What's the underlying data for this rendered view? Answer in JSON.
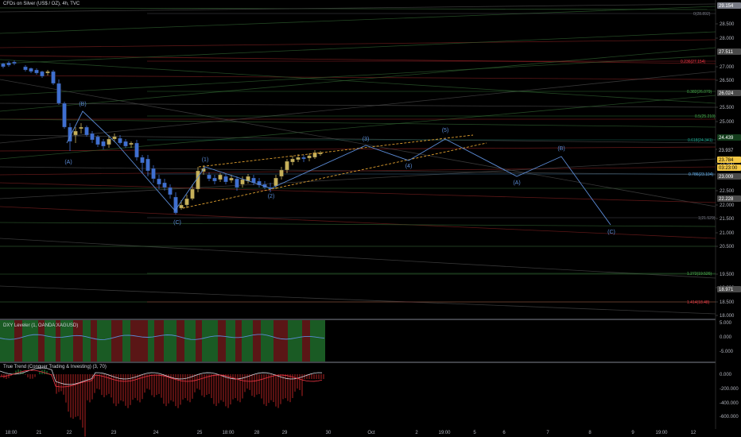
{
  "header": {
    "symbol_title": "CFDs on Silver (US$ / OZ), 4h, TVC"
  },
  "price_axis": {
    "ticks": [
      "28.500",
      "28.000",
      "27.000",
      "26.500",
      "25.500",
      "25.000",
      "24.000",
      "23.500",
      "22.500",
      "22.000",
      "21.500",
      "21.000",
      "20.500",
      "19.500",
      "19.000",
      "18.500",
      "18.000"
    ],
    "badges": [
      {
        "label": "29.154",
        "bg": "#787b86",
        "fg": "#ffffff"
      },
      {
        "label": "27.511",
        "bg": "#4a4a4a",
        "fg": "#ffffff"
      },
      {
        "label": "26.024",
        "bg": "#4a4a4a",
        "fg": "#ffffff"
      },
      {
        "label": "24.439",
        "bg": "#133d1c",
        "fg": "#ffffff"
      },
      {
        "label": "23.937",
        "bg": "#000000",
        "fg": "#d1d4dc"
      },
      {
        "label": "23.784",
        "bg": "#f2c744",
        "fg": "#000000"
      },
      {
        "label": "03:23:00",
        "bg": "#f2c744",
        "fg": "#000000"
      },
      {
        "label": "23.009",
        "bg": "#4a4a4a",
        "fg": "#ffffff"
      },
      {
        "label": "22.228",
        "bg": "#4a4a4a",
        "fg": "#ffffff"
      },
      {
        "label": "18.971",
        "bg": "#4a4a4a",
        "fg": "#ffffff"
      }
    ]
  },
  "fib_levels": [
    {
      "label": "0(28.892)",
      "color": "#787b86"
    },
    {
      "label": "0.236(27.154)",
      "color": "#f23645"
    },
    {
      "label": "0.382(26.079)",
      "color": "#4caf50"
    },
    {
      "label": "0.5(25.210)",
      "color": "#4caf50"
    },
    {
      "label": "0.618(24.341)",
      "color": "#22ab94"
    },
    {
      "label": "0.786(23.104)",
      "color": "#64b5f6"
    },
    {
      "label": "1(21.529)",
      "color": "#787b86"
    },
    {
      "label": "1.272(19.526)",
      "color": "#4caf50"
    },
    {
      "label": "1.414(18.48)",
      "color": "#f23645"
    }
  ],
  "wave_labels": [
    "(B)",
    "(A)",
    "(C)",
    "(1)",
    "(2)",
    "(3)",
    "(4)",
    "(5)",
    "(B)",
    "(A)",
    "(C)"
  ],
  "time_axis": [
    "18:00",
    "21",
    "22",
    "23",
    "24",
    "25",
    "18:00",
    "28",
    "29",
    "30",
    "Oct",
    "2",
    "19:00",
    "5",
    "6",
    "7",
    "8",
    "9",
    "19:00",
    "12"
  ],
  "indicator1": {
    "title": "DXY Leveler (1, OANDA:XAGUSD)",
    "ticks": [
      "5.000",
      "0.000",
      "-5.000"
    ]
  },
  "indicator2": {
    "title": "True Trend (Conquer Trading & Investing) (3, 70)",
    "ticks": [
      "0.000",
      "-200.000",
      "-400.000",
      "-600.000"
    ]
  },
  "colors": {
    "up": "#c7b15a",
    "down": "#3f6fd1",
    "forecast": "#5b8bd6",
    "fib_channel": "#e0a030",
    "panel_border": "#aab2c0"
  }
}
